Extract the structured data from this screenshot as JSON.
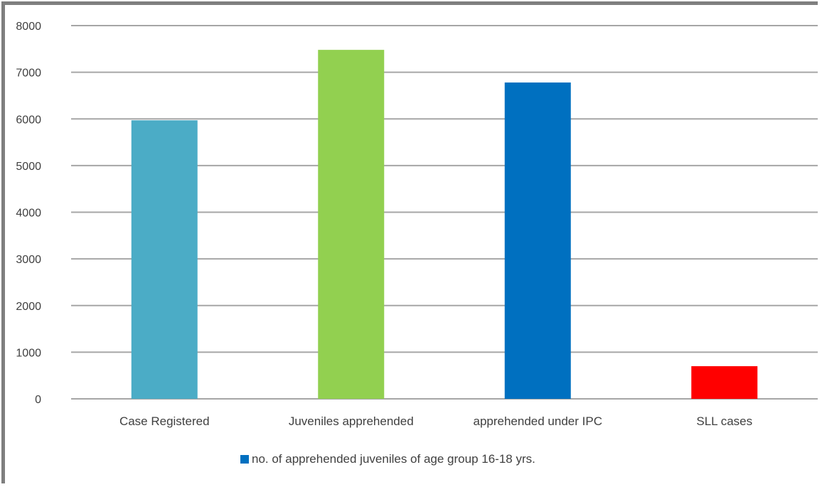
{
  "chart_data": {
    "type": "bar",
    "categories": [
      "Case Registered",
      "Juveniles apprehended",
      "apprehended under IPC",
      "SLL cases"
    ],
    "series": [
      {
        "name": "no. of apprehended juveniles of age group 16-18 yrs.",
        "values": [
          5970,
          7480,
          6780,
          700
        ],
        "colors": [
          "#4bacc6",
          "#92d050",
          "#0070c0",
          "#ff0000"
        ]
      }
    ],
    "ylim": [
      0,
      8000
    ],
    "yticks": [
      0,
      1000,
      2000,
      3000,
      4000,
      5000,
      6000,
      7000,
      8000
    ],
    "grid": true,
    "legend_position": "bottom",
    "legend_color": "#0070c0"
  }
}
